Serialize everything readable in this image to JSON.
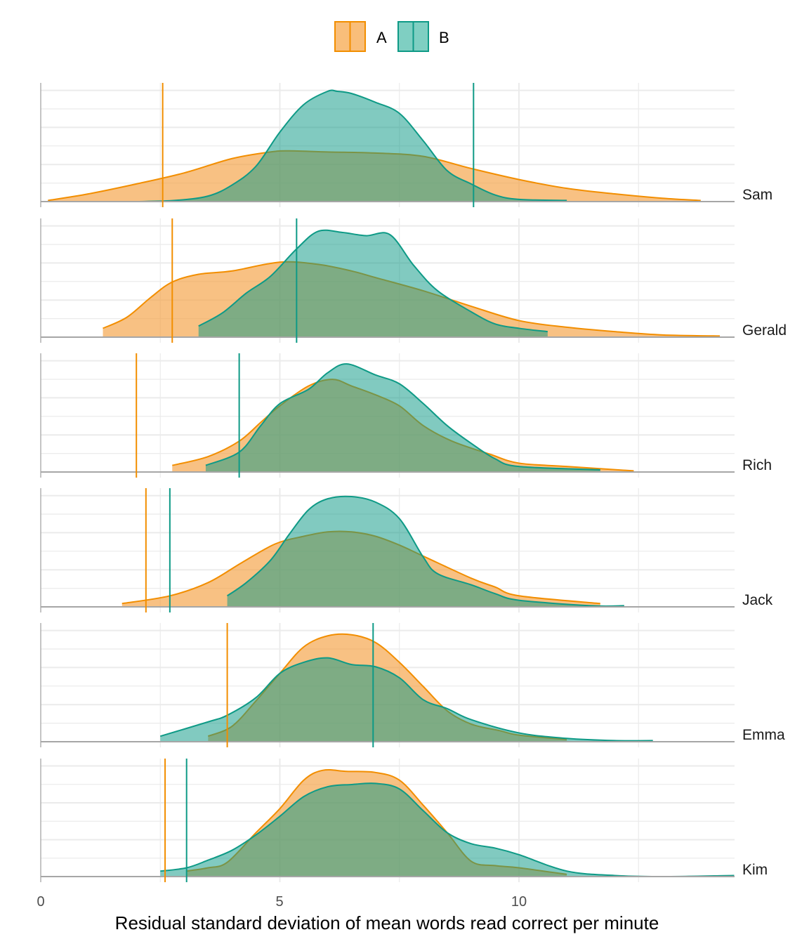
{
  "chart_data": {
    "type": "area",
    "subtype": "overlapping-density-ridges",
    "title": "",
    "xlabel": "Residual standard deviation of mean words read correct per minute",
    "ylabel": "",
    "xlim": [
      0,
      14.5
    ],
    "x_ticks": [
      0,
      5,
      10
    ],
    "x_tick_labels": [
      "0",
      "5",
      "10"
    ],
    "grid": true,
    "legend": {
      "placement": "top",
      "entries": [
        {
          "label": "A",
          "color": "#F28E00",
          "fill": "#F9BE7A"
        },
        {
          "label": "B",
          "color": "#0E9A86",
          "fill": "#7FCFC2"
        }
      ]
    },
    "colors": {
      "A": "#F28E00",
      "B": "#0E9A86",
      "overlap": "#7BAD7E",
      "baseline": "#A6A6A6",
      "grid": "#EBEBEB"
    },
    "facets": [
      {
        "name": "Sam",
        "vline": {
          "A": 2.55,
          "B": 9.05
        },
        "A": {
          "x": [
            0.15,
            1,
            2,
            3,
            4,
            4.8,
            5.2,
            6,
            7,
            8,
            9,
            10,
            11,
            12,
            13,
            13.8
          ],
          "y": [
            0.01,
            0.07,
            0.16,
            0.26,
            0.39,
            0.45,
            0.46,
            0.45,
            0.44,
            0.41,
            0.3,
            0.2,
            0.12,
            0.07,
            0.03,
            0.01
          ]
        },
        "B": {
          "x": [
            2.0,
            2.8,
            3.5,
            4.0,
            4.5,
            5.0,
            5.5,
            6.0,
            6.2,
            6.5,
            7.0,
            7.5,
            8.0,
            8.5,
            9.0,
            9.5,
            10.0,
            11.0
          ],
          "y": [
            0.0,
            0.01,
            0.05,
            0.15,
            0.32,
            0.63,
            0.88,
            1.0,
            1.0,
            0.98,
            0.9,
            0.8,
            0.55,
            0.28,
            0.16,
            0.06,
            0.02,
            0.01
          ]
        }
      },
      {
        "name": "Gerald",
        "vline": {
          "A": 2.75,
          "B": 5.35
        },
        "A": {
          "x": [
            1.3,
            1.8,
            2.3,
            2.75,
            3.3,
            4.0,
            5.0,
            5.8,
            6.5,
            7.0,
            8.0,
            9.0,
            10.0,
            11.0,
            12.0,
            13.0,
            14.2
          ],
          "y": [
            0.08,
            0.18,
            0.36,
            0.5,
            0.57,
            0.6,
            0.68,
            0.66,
            0.6,
            0.54,
            0.42,
            0.28,
            0.15,
            0.09,
            0.05,
            0.02,
            0.01
          ]
        },
        "B": {
          "x": [
            3.3,
            3.8,
            4.3,
            4.8,
            5.35,
            5.8,
            6.3,
            6.8,
            7.3,
            7.8,
            8.3,
            9.0,
            9.5,
            10.0,
            10.6
          ],
          "y": [
            0.1,
            0.22,
            0.4,
            0.55,
            0.8,
            0.96,
            0.95,
            0.92,
            0.93,
            0.65,
            0.42,
            0.23,
            0.12,
            0.08,
            0.05
          ]
        }
      },
      {
        "name": "Rich",
        "vline": {
          "A": 2.0,
          "B": 4.15
        },
        "A": {
          "x": [
            2.75,
            3.5,
            4.15,
            4.6,
            5.0,
            5.6,
            6.1,
            6.5,
            7.0,
            7.5,
            8.0,
            8.6,
            9.4,
            10.0,
            11.0,
            12.4
          ],
          "y": [
            0.06,
            0.14,
            0.28,
            0.45,
            0.6,
            0.78,
            0.84,
            0.78,
            0.7,
            0.6,
            0.42,
            0.28,
            0.16,
            0.08,
            0.05,
            0.01
          ]
        },
        "B": {
          "x": [
            3.45,
            4.15,
            4.6,
            5.0,
            5.6,
            6.0,
            6.4,
            7.0,
            7.5,
            8.0,
            8.5,
            9.0,
            9.5,
            10.0,
            11.7
          ],
          "y": [
            0.06,
            0.18,
            0.42,
            0.62,
            0.75,
            0.9,
            0.98,
            0.88,
            0.8,
            0.62,
            0.42,
            0.26,
            0.12,
            0.05,
            0.02
          ]
        }
      },
      {
        "name": "Jack",
        "vline": {
          "A": 2.2,
          "B": 2.7
        },
        "A": {
          "x": [
            1.7,
            2.7,
            3.5,
            4.2,
            4.9,
            5.5,
            6.0,
            6.5,
            7.0,
            7.5,
            8.0,
            9.0,
            9.5,
            10.0,
            11.7
          ],
          "y": [
            0.03,
            0.1,
            0.22,
            0.4,
            0.57,
            0.64,
            0.68,
            0.68,
            0.64,
            0.56,
            0.46,
            0.26,
            0.18,
            0.1,
            0.03
          ]
        },
        "B": {
          "x": [
            3.9,
            4.3,
            4.8,
            5.2,
            5.6,
            6.0,
            6.5,
            7.0,
            7.5,
            8.0,
            8.3,
            9.0,
            9.5,
            10.0,
            11.5,
            12.2
          ],
          "y": [
            0.1,
            0.22,
            0.42,
            0.66,
            0.88,
            0.98,
            1.0,
            0.95,
            0.8,
            0.45,
            0.3,
            0.2,
            0.12,
            0.06,
            0.01,
            0.01
          ]
        }
      },
      {
        "name": "Emma",
        "vline": {
          "A": 3.9,
          "B": 6.95
        },
        "A": {
          "x": [
            3.5,
            4.0,
            4.5,
            5.0,
            5.5,
            6.0,
            6.5,
            7.0,
            7.5,
            8.0,
            8.5,
            9.0,
            9.6,
            10.0,
            11.0
          ],
          "y": [
            0.05,
            0.14,
            0.37,
            0.62,
            0.86,
            0.96,
            0.97,
            0.9,
            0.72,
            0.5,
            0.28,
            0.16,
            0.1,
            0.06,
            0.02
          ]
        },
        "B": {
          "x": [
            2.5,
            3.5,
            3.9,
            4.5,
            5.0,
            5.5,
            6.0,
            6.5,
            7.0,
            7.5,
            8.0,
            8.5,
            9.0,
            10.0,
            11.0,
            12.0,
            12.8
          ],
          "y": [
            0.05,
            0.18,
            0.24,
            0.4,
            0.62,
            0.72,
            0.76,
            0.7,
            0.68,
            0.58,
            0.38,
            0.3,
            0.2,
            0.08,
            0.03,
            0.01,
            0.01
          ]
        }
      },
      {
        "name": "Kim",
        "vline": {
          "A": 2.6,
          "B": 3.05
        },
        "A": {
          "x": [
            3.05,
            3.5,
            3.9,
            4.5,
            5.0,
            5.5,
            5.9,
            6.4,
            7.0,
            7.5,
            8.0,
            8.5,
            9.0,
            9.5,
            10.0,
            11.0
          ],
          "y": [
            0.05,
            0.08,
            0.13,
            0.4,
            0.62,
            0.88,
            0.97,
            0.96,
            0.95,
            0.88,
            0.65,
            0.4,
            0.14,
            0.1,
            0.08,
            0.02
          ]
        },
        "B": {
          "x": [
            2.5,
            3.05,
            3.5,
            4.0,
            4.5,
            5.0,
            5.5,
            6.0,
            6.5,
            7.0,
            7.5,
            8.0,
            8.5,
            9.0,
            9.5,
            10.0,
            11.0,
            12.0,
            13.0,
            14.5
          ],
          "y": [
            0.05,
            0.08,
            0.15,
            0.24,
            0.38,
            0.55,
            0.73,
            0.82,
            0.84,
            0.85,
            0.8,
            0.6,
            0.4,
            0.3,
            0.26,
            0.2,
            0.05,
            0.01,
            0.0,
            0.01
          ]
        }
      }
    ]
  }
}
